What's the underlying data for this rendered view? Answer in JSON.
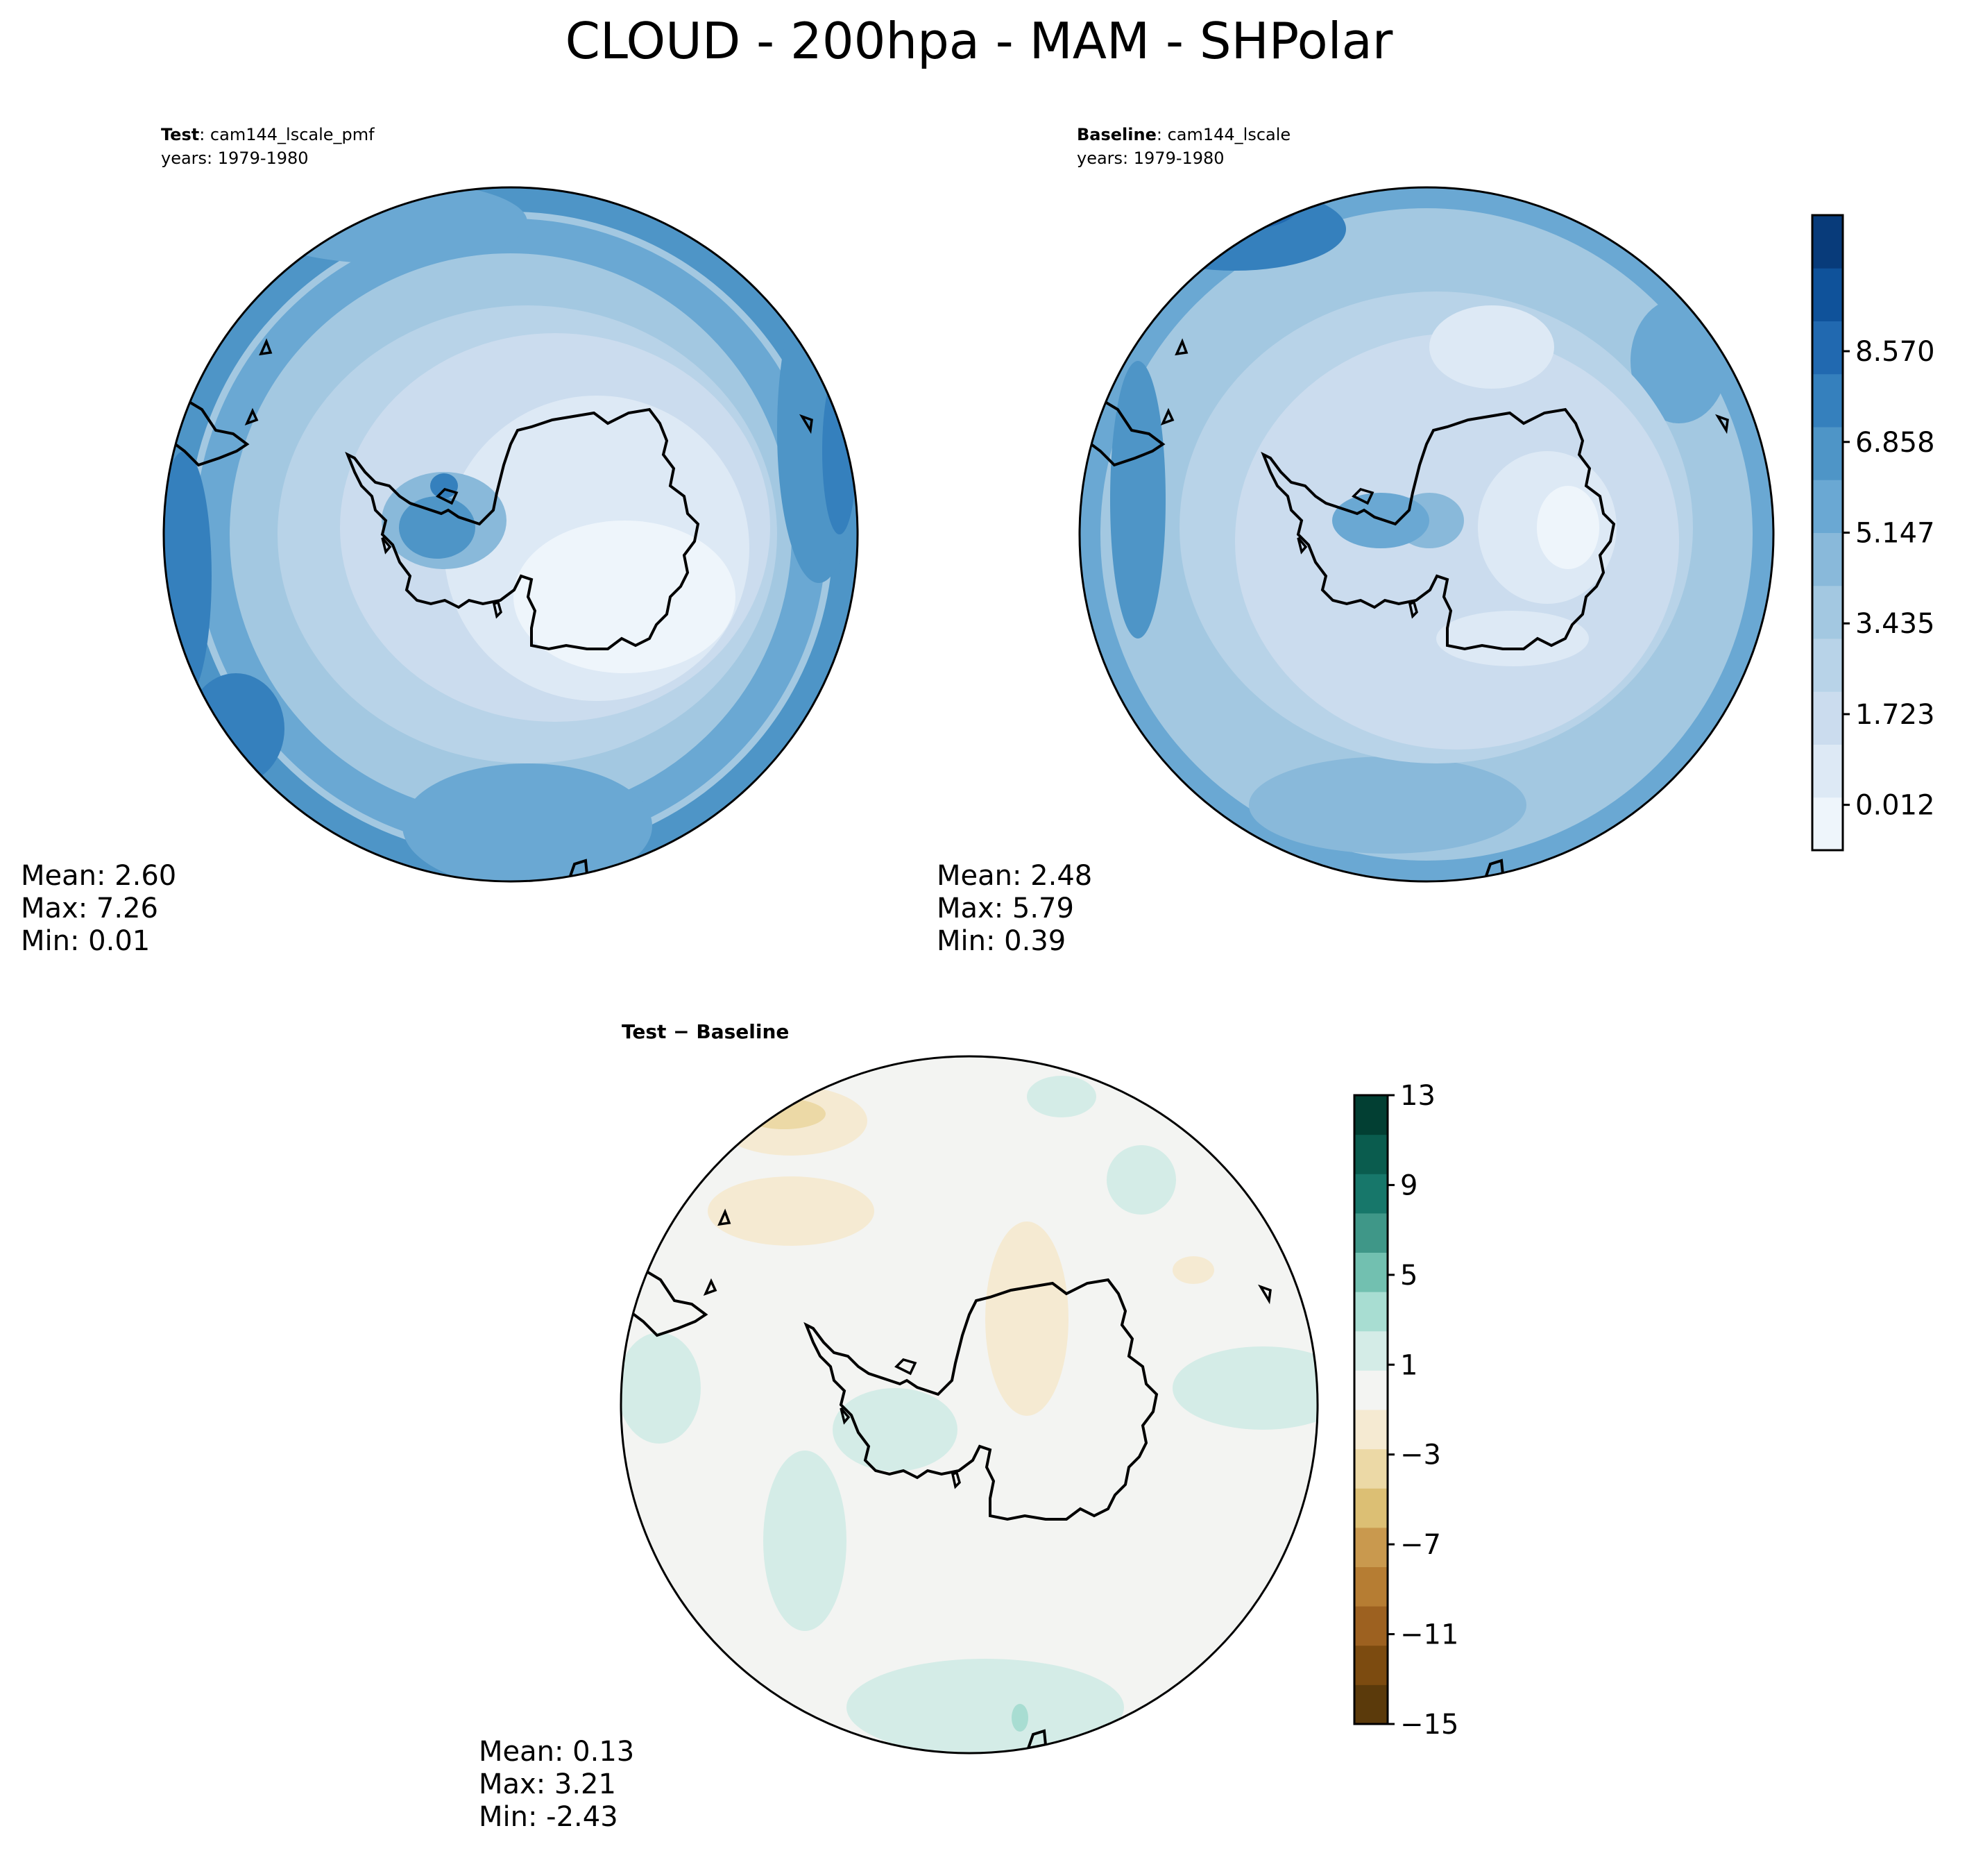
{
  "figure": {
    "title": "CLOUD - 200hpa - MAM - SHPolar"
  },
  "panels": {
    "test": {
      "label_bold": "Test",
      "label_rest": ": cam144_lscale_pmf",
      "years": "years: 1979-1980",
      "mean": "Mean:  2.60",
      "max": "Max:  7.26",
      "min": "Min:  0.01"
    },
    "baseline": {
      "label_bold": "Baseline",
      "label_rest": ": cam144_lscale",
      "years": "years: 1979-1980",
      "mean": "Mean:  2.48",
      "max": "Max:  5.79",
      "min": "Min:  0.39"
    },
    "diff": {
      "label": "Test − Baseline",
      "mean": "Mean:  0.13",
      "max": "Max:  3.21",
      "min": "Min: -2.43"
    }
  },
  "colors": {
    "ocean_fill": "#eef4fa",
    "diff_fill": "#f2f4f3",
    "coastline": "#000000",
    "blues": [
      "#eef5fb",
      "#dde9f5",
      "#cbdcee",
      "#b8d3e8",
      "#a3c8e1",
      "#89b9da",
      "#6aa8d3",
      "#4e95c7",
      "#3580bd",
      "#2169b0",
      "#0f529a",
      "#083b7a"
    ],
    "brbg": [
      "#5b3a0b",
      "#7c4b10",
      "#9d6120",
      "#b67d33",
      "#c9994e",
      "#dcbf74",
      "#ecd9a6",
      "#f5ead2",
      "#f3f4f2",
      "#d4ece7",
      "#a8ddd2",
      "#72c0b0",
      "#3f9788",
      "#17776a",
      "#0a5c4e",
      "#023f33"
    ]
  },
  "chart_data": [
    {
      "type": "heatmap",
      "panel": "Test",
      "projection": "south polar stereographic",
      "stats": {
        "mean": 2.6,
        "max": 7.26,
        "min": 0.01
      },
      "colorbar_ticks": [
        0.012,
        1.723,
        3.435,
        5.147,
        6.858,
        8.57
      ],
      "colorbar_levels": 12
    },
    {
      "type": "heatmap",
      "panel": "Baseline",
      "projection": "south polar stereographic",
      "stats": {
        "mean": 2.48,
        "max": 5.79,
        "min": 0.39
      },
      "colorbar_ticks": [
        0.012,
        1.723,
        3.435,
        5.147,
        6.858,
        8.57
      ],
      "colorbar_levels": 12,
      "colorbar_tick_labels": [
        "0.012",
        "1.723",
        "3.435",
        "5.147",
        "6.858",
        "8.570"
      ]
    },
    {
      "type": "heatmap",
      "panel": "Test − Baseline",
      "projection": "south polar stereographic",
      "stats": {
        "mean": 0.13,
        "max": 3.21,
        "min": -2.43
      },
      "colorbar_ticks": [
        -15,
        -11,
        -7,
        -3,
        1,
        5,
        9,
        13
      ],
      "colorbar_levels": 16,
      "colorbar_tick_labels": [
        "−15",
        "−11",
        "−7",
        "−3",
        "1",
        "5",
        "9",
        "13"
      ]
    }
  ]
}
